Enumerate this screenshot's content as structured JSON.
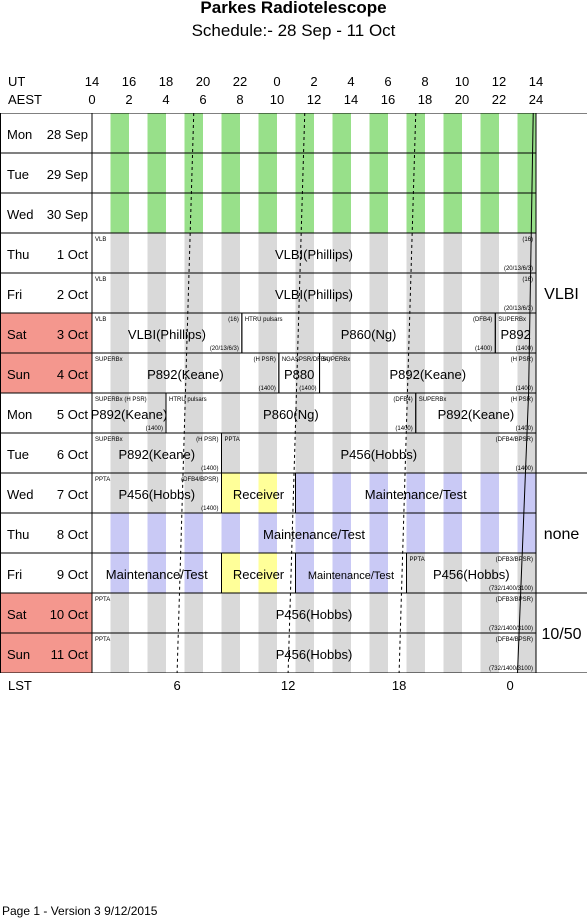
{
  "title": "Parkes Radiotelescope",
  "subtitle": "Schedule:- 28 Sep - 11 Oct",
  "axes": {
    "ut_label": "UT",
    "aest_label": "AEST",
    "ut_ticks": [
      "14",
      "16",
      "18",
      "20",
      "22",
      "0",
      "2",
      "4",
      "6",
      "8",
      "10",
      "12",
      "14"
    ],
    "aest_ticks": [
      "0",
      "2",
      "4",
      "6",
      "8",
      "10",
      "12",
      "14",
      "16",
      "18",
      "20",
      "22",
      "24"
    ],
    "lst_label": "LST",
    "lst_ticks": [
      "6",
      "12",
      "18",
      "0"
    ]
  },
  "colors": {
    "weekend": "#f4978e",
    "green": "#98e08a",
    "grey": "#d9d9d9",
    "lavender": "#c9c9f5",
    "yellow": "#ffff99"
  },
  "days": [
    {
      "weekday": "Mon",
      "date": "28 Sep",
      "weekend": false
    },
    {
      "weekday": "Tue",
      "date": "29 Sep",
      "weekend": false
    },
    {
      "weekday": "Wed",
      "date": "30 Sep",
      "weekend": false
    },
    {
      "weekday": "Thu",
      "date": "1 Oct",
      "weekend": false
    },
    {
      "weekday": "Fri",
      "date": "2 Oct",
      "weekend": false
    },
    {
      "weekday": "Sat",
      "date": "3 Oct",
      "weekend": true
    },
    {
      "weekday": "Sun",
      "date": "4 Oct",
      "weekend": true
    },
    {
      "weekday": "Mon",
      "date": "5 Oct",
      "weekend": false
    },
    {
      "weekday": "Tue",
      "date": "6 Oct",
      "weekend": false
    },
    {
      "weekday": "Wed",
      "date": "7 Oct",
      "weekend": false
    },
    {
      "weekday": "Thu",
      "date": "8 Oct",
      "weekend": false
    },
    {
      "weekday": "Fri",
      "date": "9 Oct",
      "weekend": false
    },
    {
      "weekday": "Sat",
      "date": "10 Oct",
      "weekend": true
    },
    {
      "weekday": "Sun",
      "date": "11 Oct",
      "weekend": true
    }
  ],
  "receivers": [
    {
      "label": "VLBI",
      "first_row": 0,
      "last_row": 8
    },
    {
      "label": "none",
      "first_row": 9,
      "last_row": 11
    },
    {
      "label": "10/50",
      "first_row": 12,
      "last_row": 13
    }
  ],
  "blocks": [
    {
      "row": 3,
      "start": 0,
      "end": 24,
      "label": "VLBI(Phillips)",
      "tl": "VLB",
      "tr": "(16)",
      "br": "(20/13/6/3)"
    },
    {
      "row": 4,
      "start": 0,
      "end": 24,
      "label": "VLBI(Phillips)",
      "tl": "VLB",
      "tr": "(16)",
      "br": "(20/13/6/3)"
    },
    {
      "row": 5,
      "start": 0,
      "end": 8.1,
      "label": "VLBI(Phillips)",
      "tl": "VLB",
      "tr": "(16)",
      "br": "(20/13/6/3)"
    },
    {
      "row": 5,
      "start": 8.1,
      "end": 21.8,
      "label": "P860(Ng)",
      "tl": "HTRU pulsars",
      "tr": "(DFB4)",
      "br": "(1400)"
    },
    {
      "row": 5,
      "start": 21.8,
      "end": 24,
      "label": "P892",
      "tl": "SUPERBx",
      "br": "(1400)"
    },
    {
      "row": 6,
      "start": 0,
      "end": 10.1,
      "label": "P892(Keane)",
      "tl": "SUPERBx",
      "tr": "(H PSR)",
      "br": "(1400)"
    },
    {
      "row": 6,
      "start": 10.1,
      "end": 12.3,
      "label": "P880",
      "tl": "NGASPSR/DFB4)",
      "br": "(1400)"
    },
    {
      "row": 6,
      "start": 12.3,
      "end": 24,
      "label": "P892(Keane)",
      "tl": "SUPERBx",
      "tr": "(H PSR)",
      "br": "(1400)"
    },
    {
      "row": 7,
      "start": 0,
      "end": 4,
      "label": "P892(Keane)",
      "tl": "SUPERBx (H PSR)",
      "br": "(1400)"
    },
    {
      "row": 7,
      "start": 4,
      "end": 17.5,
      "label": "P860(Ng)",
      "tl": "HTRU pulsars",
      "tr": "(DFB4)",
      "br": "(1400)"
    },
    {
      "row": 7,
      "start": 17.5,
      "end": 24,
      "label": "P892(Keane)",
      "tl": "SUPERBx",
      "tr": "(H PSR)",
      "br": "(1400)"
    },
    {
      "row": 8,
      "start": 0,
      "end": 7,
      "label": "P892(Keane)",
      "tl": "SUPERBx",
      "tr": "(H PSR)",
      "br": "(1400)"
    },
    {
      "row": 8,
      "start": 7,
      "end": 24,
      "label": "P456(Hobbs)",
      "tl": "PPTA",
      "tr": "(DFB4/BPSR)",
      "br": "(1400)"
    },
    {
      "row": 9,
      "start": 0,
      "end": 7,
      "label": "P456(Hobbs)",
      "tl": "PPTA",
      "tr": "(DFB4/BPSR)",
      "br": "(1400)"
    },
    {
      "row": 9,
      "start": 7,
      "end": 11,
      "label": "Receiver",
      "fill": "yellow"
    },
    {
      "row": 9,
      "start": 11,
      "end": 24,
      "label": "Maintenance/Test",
      "fill": "lavender"
    },
    {
      "row": 10,
      "start": 0,
      "end": 24,
      "label": "Maintenance/Test",
      "fill": "lavender"
    },
    {
      "row": 11,
      "start": 0,
      "end": 7,
      "label": "Maintenance/Test",
      "fill": "lavender"
    },
    {
      "row": 11,
      "start": 7,
      "end": 11,
      "label": "Receiver",
      "fill": "yellow"
    },
    {
      "row": 11,
      "start": 11,
      "end": 17,
      "label": "Maintenance/Test",
      "fill": "lavender",
      "small": true
    },
    {
      "row": 11,
      "start": 17,
      "end": 24,
      "label": "P456(Hobbs)",
      "tl": "PPTA",
      "tr": "(DFB3/BPSR)",
      "br": "(732/1400/3100)"
    },
    {
      "row": 12,
      "start": 0,
      "end": 24,
      "label": "P456(Hobbs)",
      "tl": "PPTA",
      "tr": "(DFB3/BPSR)",
      "br": "(732/1400/3100)"
    },
    {
      "row": 13,
      "start": 0,
      "end": 24,
      "label": "P456(Hobbs)",
      "tl": "PPTA",
      "tr": "(DFB4/BPSR)",
      "br": "(732/1400/3100)"
    }
  ],
  "footer": "Page 1 - Version 3  9/12/2015"
}
